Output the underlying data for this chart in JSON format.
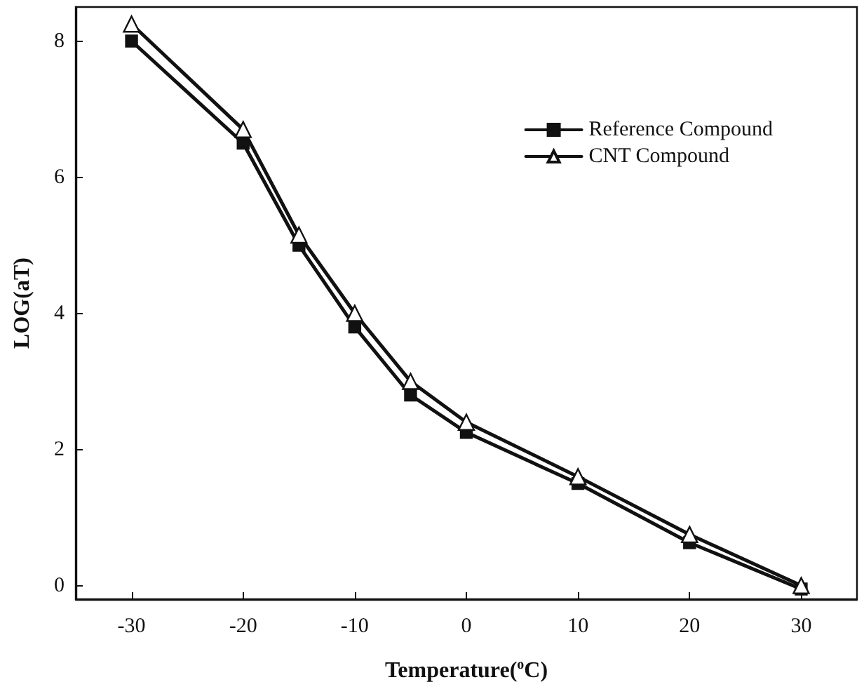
{
  "chart_data": {
    "type": "line",
    "xlabel": "Temperature($^{o}$C)",
    "ylabel": "LOG(aT)",
    "xlim": [
      -35,
      35
    ],
    "xticks": [
      -30,
      -20,
      -10,
      0,
      10,
      20,
      30
    ],
    "ylim": [
      -0.2,
      8.5
    ],
    "yticks": [
      0,
      2,
      4,
      6,
      8
    ],
    "grid": false,
    "legend": "top right",
    "line_style": "solid",
    "series": [
      {
        "name": "Reference Compound",
        "color": "#111111",
        "marker": "square",
        "x": [
          -30,
          -20,
          -15,
          -10,
          -5,
          0,
          10,
          20,
          30
        ],
        "values": [
          8.0,
          6.5,
          5.0,
          3.8,
          2.8,
          2.25,
          1.5,
          0.63,
          -0.05
        ]
      },
      {
        "name": "CNT Compound",
        "color": "#111111",
        "marker": "triangle",
        "x": [
          -30,
          -20,
          -15,
          -10,
          -5,
          0,
          10,
          20,
          30
        ],
        "values": [
          8.25,
          6.7,
          5.15,
          4.0,
          3.0,
          2.4,
          1.6,
          0.75,
          0
        ]
      }
    ]
  }
}
